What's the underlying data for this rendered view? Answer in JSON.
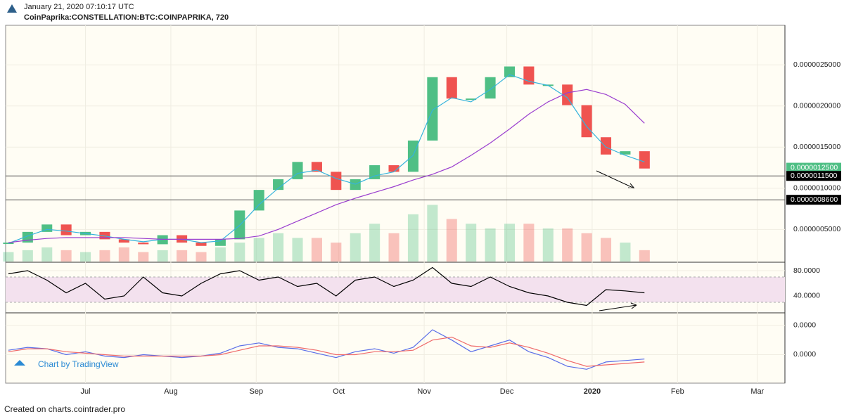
{
  "header": {
    "date": "January 21, 2020 07:10:17 UTC",
    "symbol": "CoinPaprika:CONSTELLATION:BTC:COINPAPRIKA, 720"
  },
  "watermark": "Chart by TradingView",
  "footer": "Created on charts.cointrader.pro",
  "chart_data": [
    {
      "type": "candlestick",
      "x": [
        -28,
        -21,
        -14,
        -7,
        0,
        7,
        14,
        21,
        28,
        35,
        42,
        49,
        56,
        63,
        70,
        77,
        84,
        91,
        98,
        105,
        112,
        119,
        126,
        133,
        140,
        147,
        154,
        161,
        168,
        175,
        182,
        189,
        196,
        203
      ],
      "xlim": [
        -29,
        254
      ],
      "xticks": [
        {
          "value": 0,
          "label": "Jul"
        },
        {
          "value": 31,
          "label": "Aug"
        },
        {
          "value": 62,
          "label": "Sep"
        },
        {
          "value": 92,
          "label": "Oct"
        },
        {
          "value": 123,
          "label": "Nov"
        },
        {
          "value": 153,
          "label": "Dec"
        },
        {
          "value": 184,
          "label": "2020"
        },
        {
          "value": 215,
          "label": "Feb"
        },
        {
          "value": 244,
          "label": "Mar"
        }
      ],
      "values": [
        3.4e-07,
        4.7e-07,
        5.6e-07,
        4.3e-07,
        4.7e-07,
        3.8e-07,
        3.4e-07,
        3.2e-07,
        4.3e-07,
        3.4e-07,
        3e-07,
        3.8e-07,
        7.3e-07,
        9.8e-07,
        1.11e-06,
        1.32e-06,
        1.2e-06,
        9.8e-07,
        1.11e-06,
        1.28e-06,
        1.2e-06,
        1.58e-06,
        2.35e-06,
        2.09e-06,
        2.09e-06,
        2.35e-06,
        2.48e-06,
        2.26e-06,
        2.26e-06,
        2.01e-06,
        1.62e-06,
        1.41e-06,
        1.45e-06,
        1.24e-06
      ],
      "up_color": "#4fbf85",
      "down_color": "#ef5350",
      "series": [
        {
          "color": "#35b3dc",
          "values": [
            3.3e-07,
            4.2e-07,
            5e-07,
            4.8e-07,
            4.5e-07,
            4.2e-07,
            3.8e-07,
            3.5e-07,
            3.8e-07,
            3.8e-07,
            3.4e-07,
            3.6e-07,
            5.5e-07,
            8e-07,
            1e-06,
            1.18e-06,
            1.22e-06,
            1.12e-06,
            1.05e-06,
            1.15e-06,
            1.2e-06,
            1.4e-06,
            1.95e-06,
            2.1e-06,
            2.05e-06,
            2.2e-06,
            2.38e-06,
            2.3e-06,
            2.25e-06,
            2.1e-06,
            1.75e-06,
            1.5e-06,
            1.4e-06,
            1.32e-06
          ]
        },
        {
          "color": "#9b3fcf",
          "values": [
            3.4e-07,
            3.7e-07,
            3.9e-07,
            4e-07,
            4e-07,
            4e-07,
            4e-07,
            3.9e-07,
            3.8e-07,
            3.8e-07,
            3.8e-07,
            3.8e-07,
            3.9e-07,
            4.2e-07,
            5e-07,
            6e-07,
            7e-07,
            8e-07,
            8.8e-07,
            9.5e-07,
            1.02e-06,
            1.1e-06,
            1.17e-06,
            1.26e-06,
            1.4e-06,
            1.55e-06,
            1.72e-06,
            1.9e-06,
            2.05e-06,
            2.16e-06,
            2.2e-06,
            2.14e-06,
            2.02e-06,
            1.79e-06
          ]
        }
      ],
      "volume": [
        10,
        12,
        15,
        12,
        10,
        12,
        15,
        10,
        12,
        12,
        10,
        15,
        20,
        25,
        30,
        25,
        25,
        20,
        30,
        40,
        30,
        50,
        60,
        45,
        40,
        35,
        40,
        40,
        35,
        35,
        30,
        25,
        20,
        12
      ],
      "volume_ylim": [
        0,
        250
      ],
      "ylim": [
        1.1e-07,
        2.98e-06
      ],
      "yticks": [
        {
          "value": 2.5e-06,
          "label": "0.0000025000"
        },
        {
          "value": 2e-06,
          "label": "0.0000020000"
        },
        {
          "value": 1.5e-06,
          "label": "0.0000015000"
        },
        {
          "value": 1e-06,
          "label": "0.0000010000"
        },
        {
          "value": 5e-07,
          "label": "0.0000005000"
        }
      ],
      "price_labels": [
        {
          "value": 1.25e-06,
          "label": "0.0000012500",
          "color": "#4fbf85"
        },
        {
          "value": 1.15e-06,
          "label": "0.0000011500",
          "color": "#000000"
        },
        {
          "value": 8.6e-07,
          "label": "0.0000008600",
          "color": "#000000"
        }
      ],
      "hlines": [
        1.15e-06,
        8.6e-07
      ]
    },
    {
      "type": "line",
      "x": [
        -28,
        -21,
        -14,
        -7,
        0,
        7,
        14,
        21,
        28,
        35,
        42,
        49,
        56,
        63,
        70,
        77,
        84,
        91,
        98,
        105,
        112,
        119,
        126,
        133,
        140,
        147,
        154,
        161,
        168,
        175,
        182,
        189,
        196,
        203
      ],
      "xlim": [
        -29,
        254
      ],
      "series": [
        {
          "color": "#000000",
          "values": [
            75,
            80,
            65,
            45,
            60,
            35,
            40,
            70,
            45,
            40,
            60,
            75,
            80,
            65,
            70,
            55,
            60,
            40,
            65,
            70,
            55,
            65,
            85,
            60,
            55,
            70,
            55,
            45,
            40,
            30,
            25,
            50,
            48,
            45
          ]
        }
      ],
      "band": [
        30,
        70
      ],
      "ylim": [
        14.4,
        92.2
      ],
      "yticks": [
        {
          "value": 80,
          "label": "80.0000"
        },
        {
          "value": 40,
          "label": "40.0000"
        }
      ]
    },
    {
      "type": "line",
      "x": [
        -28,
        -21,
        -14,
        -7,
        0,
        7,
        14,
        21,
        28,
        35,
        42,
        49,
        56,
        63,
        70,
        77,
        84,
        91,
        98,
        105,
        112,
        119,
        126,
        133,
        140,
        147,
        154,
        161,
        168,
        175,
        182,
        189,
        196,
        203
      ],
      "xlim": [
        -29,
        254
      ],
      "series": [
        {
          "color": "#5a6ee8",
          "values": [
            3e-08,
            5e-08,
            4e-08,
            0,
            2e-08,
            -1e-08,
            -2e-08,
            0,
            -1e-08,
            -2e-08,
            -1e-08,
            1e-08,
            6e-08,
            8e-08,
            5e-08,
            4e-08,
            1e-08,
            -2e-08,
            2e-08,
            4e-08,
            1e-08,
            5e-08,
            1.7e-07,
            1e-07,
            2e-08,
            6e-08,
            1e-07,
            2e-08,
            -2e-08,
            -8e-08,
            -1e-07,
            -5e-08,
            -4e-08,
            -3e-08
          ]
        },
        {
          "color": "#ef6a6a",
          "values": [
            2e-08,
            4e-08,
            4e-08,
            2e-08,
            1e-08,
            0,
            -1e-08,
            -1e-08,
            -1e-08,
            -1e-08,
            -1e-08,
            0,
            3e-08,
            6e-08,
            6e-08,
            5e-08,
            3e-08,
            0,
            0,
            2e-08,
            2e-08,
            3e-08,
            1e-07,
            1.2e-07,
            6e-08,
            5e-08,
            8e-08,
            5e-08,
            1e-08,
            -4e-08,
            -8e-08,
            -7e-08,
            -6e-08,
            -5e-08
          ]
        }
      ],
      "ylim": [
        -1.9e-07,
        2.81e-07
      ],
      "yticks": [
        {
          "value": 2e-07,
          "label": "0.0000"
        },
        {
          "value": 0,
          "label": "0.0000"
        }
      ]
    }
  ]
}
